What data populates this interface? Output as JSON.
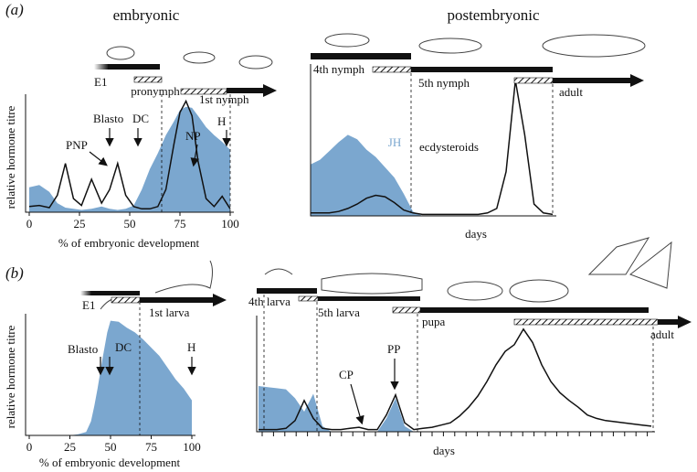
{
  "panels": [
    "(a)",
    "(b)"
  ],
  "chart_data": [
    {
      "type": "line",
      "title": "embryonic",
      "xlabel": "% of embryonic development",
      "ylabel": "relative hormone titre",
      "x": [
        0,
        5,
        10,
        14,
        18,
        22,
        26,
        31,
        36,
        40,
        44,
        48,
        52,
        56,
        60,
        64,
        68,
        72,
        75,
        78,
        81,
        84,
        88,
        92,
        96,
        100
      ],
      "xlim": [
        0,
        100
      ],
      "xticks": [
        0,
        25,
        50,
        75,
        100
      ],
      "ylim": [
        0,
        100
      ],
      "series": [
        {
          "kind": "area",
          "color": "#7ba7cf",
          "values": [
            22,
            24,
            18,
            8,
            4,
            3,
            2,
            3,
            5,
            3,
            2,
            3,
            6,
            20,
            38,
            52,
            68,
            80,
            90,
            93,
            92,
            85,
            75,
            68,
            62,
            55
          ]
        },
        {
          "kind": "line",
          "color": "#111111",
          "values": [
            5,
            6,
            4,
            15,
            43,
            12,
            6,
            29,
            8,
            20,
            43,
            15,
            5,
            3,
            3,
            5,
            20,
            60,
            88,
            98,
            85,
            45,
            12,
            5,
            14,
            3
          ]
        }
      ],
      "stages": [
        "E1",
        "pronymph",
        "1st nymph"
      ],
      "annotations": [
        "PNP",
        "Blasto",
        "DC",
        "NP",
        "H"
      ]
    },
    {
      "type": "line",
      "title": "postembryonic",
      "xlabel": "days",
      "ylim": [
        0,
        100
      ],
      "series": [
        {
          "name": "JH",
          "kind": "area",
          "color": "#7ba7cf",
          "values": [
            35,
            38,
            44,
            50,
            55,
            52,
            45,
            40,
            33,
            26,
            15,
            3,
            0,
            0,
            0,
            0,
            0,
            0,
            0,
            0,
            0,
            0,
            0,
            0,
            0,
            0,
            0
          ]
        },
        {
          "name": "ecdysteroids",
          "kind": "line",
          "color": "#111111",
          "values": [
            2,
            2,
            2,
            3,
            5,
            8,
            12,
            14,
            13,
            9,
            4,
            2,
            1,
            1,
            1,
            1,
            1,
            1,
            1,
            2,
            5,
            30,
            92,
            55,
            8,
            2,
            1
          ]
        }
      ],
      "stages": [
        "4th nymph",
        "5th nymph",
        "adult"
      ]
    },
    {
      "type": "line",
      "xlabel": "% of embryonic development",
      "ylabel": "relative hormone titre",
      "x": [
        0,
        25,
        30,
        35,
        38,
        40,
        42,
        45,
        48,
        50,
        55,
        60,
        65,
        70,
        75,
        80,
        85,
        90,
        95,
        100
      ],
      "xlim": [
        0,
        100
      ],
      "xticks": [
        0,
        25,
        50,
        75,
        100
      ],
      "ylim": [
        0,
        100
      ],
      "series": [
        {
          "kind": "area",
          "color": "#7ba7cf",
          "values": [
            0,
            0,
            1,
            3,
            12,
            25,
            40,
            65,
            88,
            98,
            97,
            92,
            88,
            82,
            75,
            68,
            58,
            48,
            40,
            30
          ]
        }
      ],
      "stages": [
        "E1",
        "1st larva"
      ],
      "annotations": [
        "Blasto",
        "DC",
        "H"
      ]
    },
    {
      "type": "line",
      "xlabel": "days",
      "ylim": [
        0,
        100
      ],
      "series": [
        {
          "kind": "area",
          "color": "#7ba7cf",
          "values": [
            41,
            40,
            39,
            38,
            30,
            18,
            34,
            5,
            0,
            0,
            0,
            0,
            0,
            0,
            12,
            30,
            5,
            0,
            0,
            0,
            0,
            0,
            0,
            0,
            0,
            0,
            0,
            0,
            0,
            0,
            0,
            0,
            0,
            0,
            0,
            0,
            0,
            0,
            0,
            0,
            0,
            0,
            0,
            0
          ]
        },
        {
          "kind": "line",
          "color": "#111111",
          "values": [
            2,
            2,
            2,
            3,
            10,
            28,
            12,
            3,
            2,
            2,
            3,
            4,
            2,
            2,
            15,
            33,
            8,
            2,
            3,
            4,
            6,
            8,
            14,
            22,
            32,
            45,
            60,
            72,
            78,
            92,
            80,
            60,
            45,
            35,
            28,
            22,
            15,
            12,
            10,
            9,
            8,
            7,
            6,
            5
          ]
        }
      ],
      "stages": [
        "4th larva",
        "5th larva",
        "pupa",
        "adult"
      ],
      "annotations": [
        "CP",
        "PP"
      ]
    }
  ]
}
